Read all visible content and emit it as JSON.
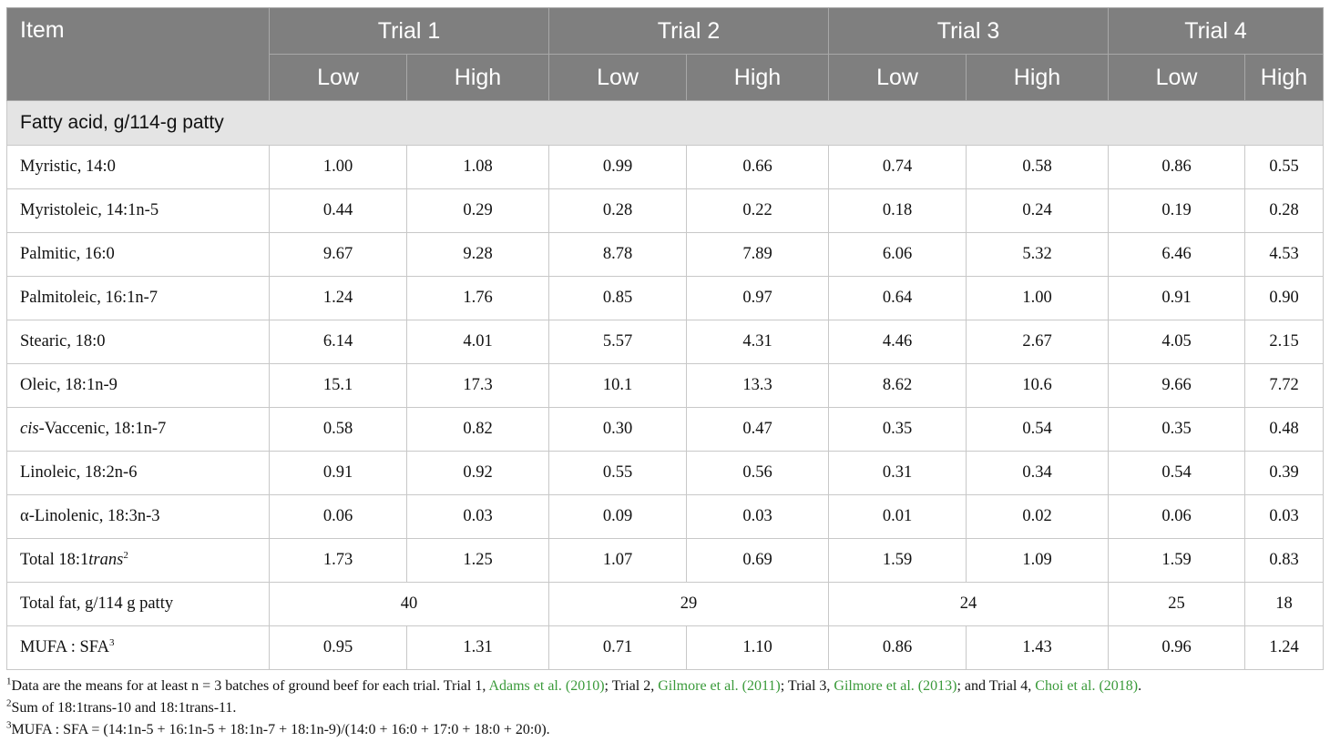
{
  "header": {
    "item": "Item",
    "trials": [
      "Trial 1",
      "Trial 2",
      "Trial 3",
      "Trial 4"
    ],
    "low": "Low",
    "high": "High"
  },
  "section": "Fatty acid, g/114-g patty",
  "rows": [
    {
      "pre": "",
      "label": "Myristic, 14:0",
      "values": [
        "1.00",
        "1.08",
        "0.99",
        "0.66",
        "0.74",
        "0.58",
        "0.86",
        "0.55"
      ]
    },
    {
      "pre": "",
      "label": "Myristoleic, 14:1n-5",
      "values": [
        "0.44",
        "0.29",
        "0.28",
        "0.22",
        "0.18",
        "0.24",
        "0.19",
        "0.28"
      ]
    },
    {
      "pre": "",
      "label": "Palmitic, 16:0",
      "values": [
        "9.67",
        "9.28",
        "8.78",
        "7.89",
        "6.06",
        "5.32",
        "6.46",
        "4.53"
      ]
    },
    {
      "pre": "",
      "label": "Palmitoleic, 16:1n-7",
      "values": [
        "1.24",
        "1.76",
        "0.85",
        "0.97",
        "0.64",
        "1.00",
        "0.91",
        "0.90"
      ]
    },
    {
      "pre": "",
      "label": "Stearic, 18:0",
      "values": [
        "6.14",
        "4.01",
        "5.57",
        "4.31",
        "4.46",
        "2.67",
        "4.05",
        "2.15"
      ]
    },
    {
      "pre": "",
      "label": "Oleic, 18:1n-9",
      "values": [
        "15.1",
        "17.3",
        "10.1",
        "13.3",
        "8.62",
        "10.6",
        "9.66",
        "7.72"
      ]
    },
    {
      "pre": "cis",
      "label": "-Vaccenic, 18:1n-7",
      "values": [
        "0.58",
        "0.82",
        "0.30",
        "0.47",
        "0.35",
        "0.54",
        "0.35",
        "0.48"
      ]
    },
    {
      "pre": "",
      "label": "Linoleic, 18:2n-6",
      "values": [
        "0.91",
        "0.92",
        "0.55",
        "0.56",
        "0.31",
        "0.34",
        "0.54",
        "0.39"
      ]
    },
    {
      "pre": "",
      "label": "α-Linolenic, 18:3n-3",
      "values": [
        "0.06",
        "0.03",
        "0.09",
        "0.03",
        "0.01",
        "0.02",
        "0.06",
        "0.03"
      ]
    }
  ],
  "trans_row": {
    "label": "Total 18:1",
    "italic": "trans",
    "sup": "2",
    "values": [
      "1.73",
      "1.25",
      "1.07",
      "0.69",
      "1.59",
      "1.09",
      "1.59",
      "0.83"
    ]
  },
  "total_fat": {
    "label": "Total fat, g/114 g patty",
    "values": [
      "40",
      "29",
      "24",
      "25",
      "18"
    ]
  },
  "mufa_row": {
    "label": "MUFA : SFA",
    "sup": "3",
    "values": [
      "0.95",
      "1.31",
      "0.71",
      "1.10",
      "0.86",
      "1.43",
      "0.96",
      "1.24"
    ]
  },
  "notes": {
    "n1": {
      "sup": "1",
      "t1": "Data are the means for at least n = 3 batches of ground beef for each trial. Trial 1, ",
      "r1": "Adams et al. (2010)",
      "t2": "; Trial 2, ",
      "r2": "Gilmore et al. (2011)",
      "t3": "; Trial 3, ",
      "r3": "Gilmore et al. (2013)",
      "t4": "; and Trial 4, ",
      "r4": "Choi et al. (2018)",
      "t5": "."
    },
    "n2": {
      "sup": "2",
      "text": "Sum of 18:1trans-10 and 18:1trans-11."
    },
    "n3": {
      "sup": "3",
      "text": "MUFA : SFA = (14:1n-5 + 16:1n-5 + 18:1n-7 + 18:1n-9)/(14:0 + 16:0 + 17:0 + 18:0 + 20:0)."
    }
  }
}
